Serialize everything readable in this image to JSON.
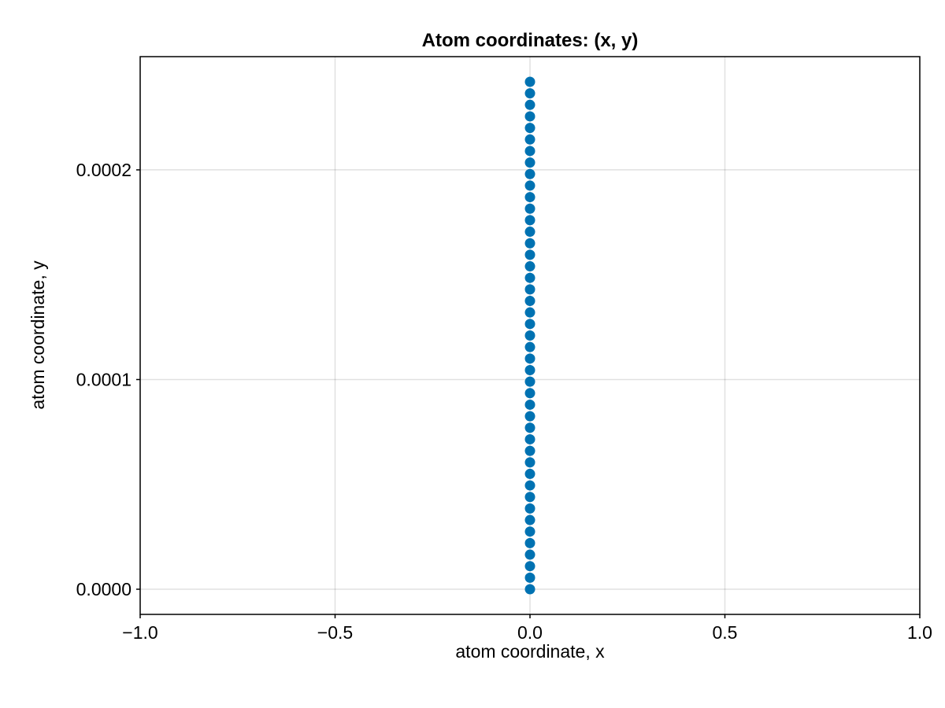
{
  "chart_data": {
    "type": "scatter",
    "title": "Atom coordinates: (x, y)",
    "xlabel": "atom coordinate, x",
    "ylabel": "atom coordinate, y",
    "xlim": [
      -1.0,
      1.0
    ],
    "ylim": [
      -1.2e-05,
      0.000254
    ],
    "xticks": [
      -1.0,
      -0.5,
      0.0,
      0.5,
      1.0
    ],
    "xtick_labels": [
      "−1.0",
      "−0.5",
      "0.0",
      "0.5",
      "1.0"
    ],
    "yticks": [
      0.0,
      0.0001,
      0.0002
    ],
    "ytick_labels": [
      "0.0000",
      "0.0001",
      "0.0002"
    ],
    "grid": true,
    "marker_color": "#0072b2",
    "series": [
      {
        "x": [
          0,
          0,
          0,
          0,
          0,
          0,
          0,
          0,
          0,
          0,
          0,
          0,
          0,
          0,
          0,
          0,
          0,
          0,
          0,
          0,
          0,
          0,
          0,
          0,
          0,
          0,
          0,
          0,
          0,
          0,
          0,
          0,
          0,
          0,
          0,
          0,
          0,
          0,
          0,
          0,
          0,
          0,
          0,
          0,
          0
        ],
        "y": [
          0.0,
          5.5e-06,
          1.1e-05,
          1.65e-05,
          2.2e-05,
          2.75e-05,
          3.3e-05,
          3.85e-05,
          4.4e-05,
          4.95e-05,
          5.5e-05,
          6.05e-05,
          6.6e-05,
          7.15e-05,
          7.7e-05,
          8.25e-05,
          8.8e-05,
          9.35e-05,
          9.9e-05,
          0.0001045,
          0.00011,
          0.0001155,
          0.000121,
          0.0001265,
          0.000132,
          0.0001375,
          0.000143,
          0.0001485,
          0.000154,
          0.0001595,
          0.000165,
          0.0001705,
          0.000176,
          0.0001815,
          0.000187,
          0.0001925,
          0.000198,
          0.0002035,
          0.000209,
          0.0002145,
          0.00022,
          0.0002255,
          0.000231,
          0.0002365,
          0.000242
        ]
      }
    ]
  }
}
